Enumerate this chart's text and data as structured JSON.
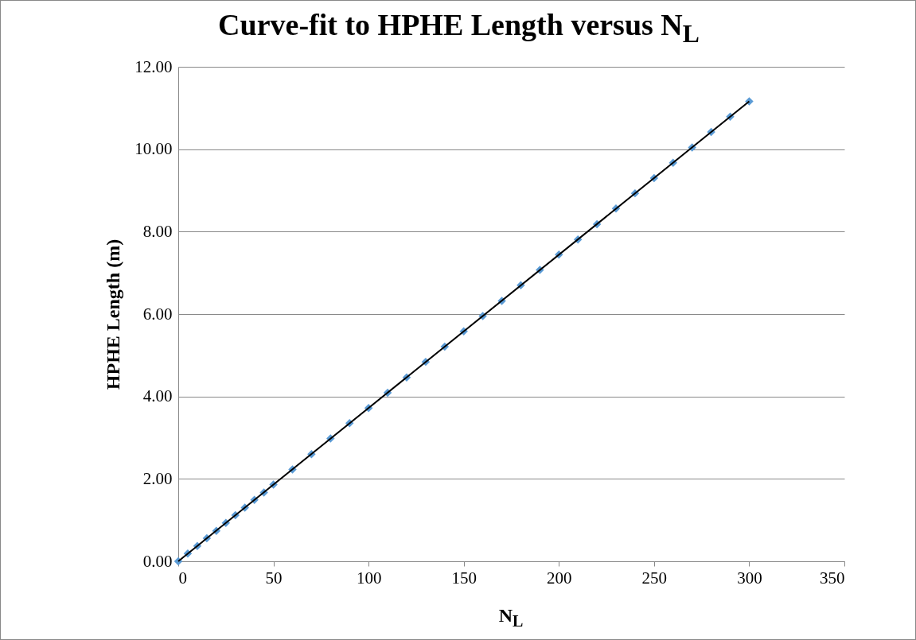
{
  "chart_data": {
    "type": "scatter",
    "title": "Curve-fit to HPHE Length versus N$_{L}$",
    "xlabel": "N$_{L}$",
    "ylabel": "HPHE Length (m)",
    "xlim": [
      0,
      350
    ],
    "xticks": [
      0,
      50,
      100,
      150,
      200,
      250,
      300,
      350
    ],
    "ylim": [
      0,
      12
    ],
    "yticks": [
      {
        "value": 0,
        "label": "0.00"
      },
      {
        "value": 2,
        "label": "2.00"
      },
      {
        "value": 4,
        "label": "4.00"
      },
      {
        "value": 6,
        "label": "6.00"
      },
      {
        "value": 8,
        "label": "8.00"
      },
      {
        "value": 10,
        "label": "10.00"
      },
      {
        "value": 12,
        "label": "12.00"
      }
    ],
    "grid": "y",
    "series": [
      {
        "marker": "diamond",
        "color": "#5b9bd5",
        "x": [
          0,
          5,
          10,
          15,
          20,
          25,
          30,
          35,
          40,
          45,
          50,
          60,
          70,
          80,
          90,
          100,
          110,
          120,
          130,
          140,
          150,
          160,
          170,
          180,
          190,
          200,
          210,
          220,
          230,
          240,
          250,
          260,
          270,
          280,
          290,
          300
        ],
        "values": [
          0,
          0.19,
          0.37,
          0.56,
          0.74,
          0.93,
          1.12,
          1.3,
          1.49,
          1.67,
          1.86,
          2.23,
          2.6,
          2.98,
          3.35,
          3.72,
          4.09,
          4.46,
          4.84,
          5.21,
          5.58,
          5.95,
          6.32,
          6.7,
          7.07,
          7.44,
          7.81,
          8.18,
          8.56,
          8.93,
          9.3,
          9.67,
          10.04,
          10.42,
          10.79,
          11.16
        ]
      },
      {
        "type": "line",
        "color": "#000000",
        "line_style": "solid",
        "x": [
          0,
          300
        ],
        "values": [
          0,
          11.16
        ]
      }
    ]
  }
}
